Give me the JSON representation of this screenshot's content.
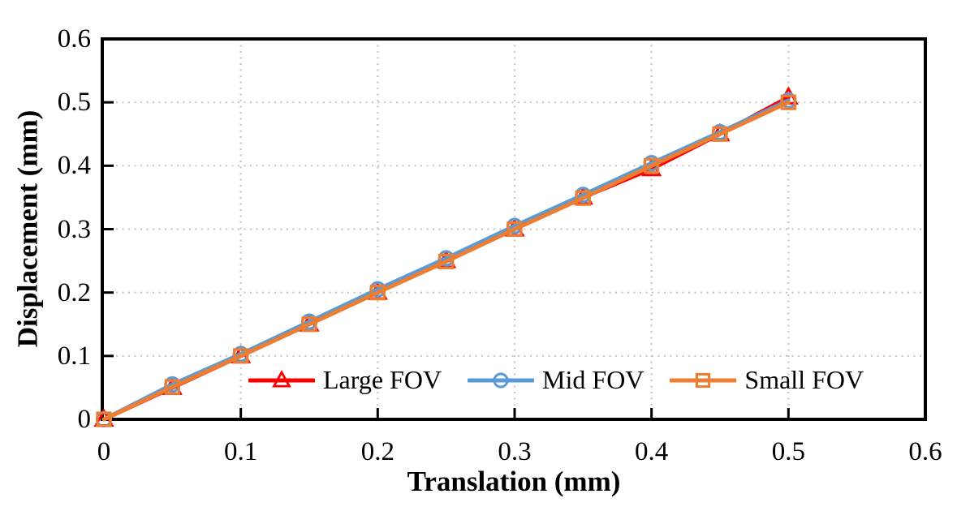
{
  "chart_data": {
    "type": "line",
    "title": "",
    "xlabel": "Translation (mm)",
    "ylabel": "Displacement (mm)",
    "xlim": [
      0,
      0.6
    ],
    "ylim": [
      0,
      0.6
    ],
    "xticks": [
      0,
      0.1,
      0.2,
      0.3,
      0.4,
      0.5,
      0.6
    ],
    "yticks": [
      0,
      0.1,
      0.2,
      0.3,
      0.4,
      0.5,
      0.6
    ],
    "xtick_labels": [
      "0",
      "0.1",
      "0.2",
      "0.3",
      "0.4",
      "0.5",
      "0.6"
    ],
    "ytick_labels": [
      "0",
      "0.1",
      "0.2",
      "0.3",
      "0.4",
      "0.5",
      "0.6"
    ],
    "grid": {
      "style": "dotted",
      "color": "#c6c6c6",
      "x_interval": 0.1,
      "y_interval": 0.1
    },
    "legend_position": "inside bottom center",
    "x": [
      0,
      0.05,
      0.1,
      0.15,
      0.2,
      0.25,
      0.3,
      0.35,
      0.4,
      0.45,
      0.5
    ],
    "series": [
      {
        "name": "Large FOV",
        "color": "#ff0000",
        "marker": "triangle",
        "values": [
          0,
          0.05,
          0.1,
          0.15,
          0.2,
          0.25,
          0.3,
          0.35,
          0.395,
          0.45,
          0.508
        ]
      },
      {
        "name": "Mid FOV",
        "color": "#5b9bd5",
        "marker": "circle",
        "values": [
          0,
          0.055,
          0.103,
          0.154,
          0.205,
          0.254,
          0.305,
          0.354,
          0.404,
          0.453,
          0.503
        ]
      },
      {
        "name": "Small FOV",
        "color": "#ed7d31",
        "marker": "square",
        "values": [
          0,
          0.051,
          0.1,
          0.15,
          0.2,
          0.249,
          0.3,
          0.349,
          0.4,
          0.45,
          0.5
        ]
      }
    ],
    "colors": {
      "axis": "#000000",
      "text": "#000000",
      "background": "#ffffff"
    }
  }
}
